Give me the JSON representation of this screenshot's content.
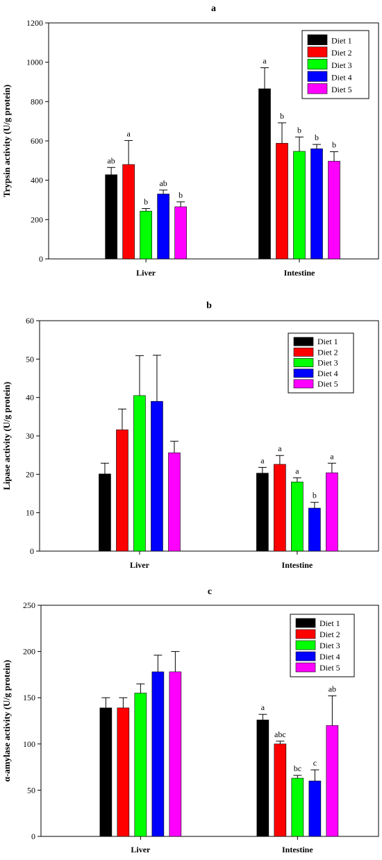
{
  "chart_data": [
    {
      "type": "bar",
      "title": "a",
      "ylabel": "Trypsin activity (U/g protein)",
      "categories": [
        "Liver",
        "Intestine"
      ],
      "ylim": [
        0,
        1200
      ],
      "yticks": [
        0,
        200,
        400,
        600,
        800,
        1000,
        1200
      ],
      "legend_position": "top-right",
      "series": [
        {
          "name": "Diet 1",
          "color": "#000000",
          "values": [
            428,
            865
          ],
          "errors": [
            37,
            107
          ],
          "labels": [
            "ab",
            "a"
          ]
        },
        {
          "name": "Diet 2",
          "color": "#ff0000",
          "values": [
            480,
            588
          ],
          "errors": [
            122,
            104
          ],
          "labels": [
            "a",
            "b"
          ]
        },
        {
          "name": "Diet 3",
          "color": "#00ff00",
          "values": [
            243,
            547
          ],
          "errors": [
            13,
            73
          ],
          "labels": [
            "b",
            "b"
          ]
        },
        {
          "name": "Diet 4",
          "color": "#0000ff",
          "values": [
            330,
            560
          ],
          "errors": [
            20,
            22
          ],
          "labels": [
            "ab",
            "b"
          ]
        },
        {
          "name": "Diet 5",
          "color": "#ff00ff",
          "values": [
            265,
            497
          ],
          "errors": [
            25,
            48
          ],
          "labels": [
            "b",
            "b"
          ]
        }
      ]
    },
    {
      "type": "bar",
      "title": "b",
      "ylabel": "Lipase activity (U/g protein)",
      "categories": [
        "Liver",
        "Intestine"
      ],
      "ylim": [
        0,
        60
      ],
      "yticks": [
        0,
        10,
        20,
        30,
        40,
        50,
        60
      ],
      "legend_position": "top-right",
      "series": [
        {
          "name": "Diet 1",
          "color": "#000000",
          "values": [
            20.1,
            20.3
          ],
          "errors": [
            2.8,
            1.5
          ],
          "labels": [
            "",
            "a"
          ]
        },
        {
          "name": "Diet 2",
          "color": "#ff0000",
          "values": [
            31.6,
            22.6
          ],
          "errors": [
            5.4,
            2.3
          ],
          "labels": [
            "",
            "a"
          ]
        },
        {
          "name": "Diet 3",
          "color": "#00ff00",
          "values": [
            40.5,
            18.0
          ],
          "errors": [
            10.4,
            1.1
          ],
          "labels": [
            "",
            "a"
          ]
        },
        {
          "name": "Diet 4",
          "color": "#0000ff",
          "values": [
            39.0,
            11.2
          ],
          "errors": [
            12.0,
            1.5
          ],
          "labels": [
            "",
            "b"
          ]
        },
        {
          "name": "Diet 5",
          "color": "#ff00ff",
          "values": [
            25.6,
            20.4
          ],
          "errors": [
            3.0,
            2.5
          ],
          "labels": [
            "",
            "a"
          ]
        }
      ]
    },
    {
      "type": "bar",
      "title": "c",
      "ylabel": "α-amylase activity (U/g protein)",
      "categories": [
        "Liver",
        "Intestine"
      ],
      "ylim": [
        0,
        250
      ],
      "yticks": [
        0,
        50,
        100,
        150,
        200,
        250
      ],
      "legend_position": "top-right",
      "series": [
        {
          "name": "Diet 1",
          "color": "#000000",
          "values": [
            139,
            126
          ],
          "errors": [
            11,
            6
          ],
          "labels": [
            "",
            "a"
          ]
        },
        {
          "name": "Diet 2",
          "color": "#ff0000",
          "values": [
            139,
            100
          ],
          "errors": [
            11,
            3
          ],
          "labels": [
            "",
            "abc"
          ]
        },
        {
          "name": "Diet 3",
          "color": "#00ff00",
          "values": [
            155,
            63
          ],
          "errors": [
            10,
            3
          ],
          "labels": [
            "",
            "bc"
          ]
        },
        {
          "name": "Diet 4",
          "color": "#0000ff",
          "values": [
            178,
            60
          ],
          "errors": [
            18,
            12
          ],
          "labels": [
            "",
            "c"
          ]
        },
        {
          "name": "Diet 5",
          "color": "#ff00ff",
          "values": [
            178,
            120
          ],
          "errors": [
            22,
            32
          ],
          "labels": [
            "",
            "ab"
          ]
        }
      ]
    }
  ]
}
